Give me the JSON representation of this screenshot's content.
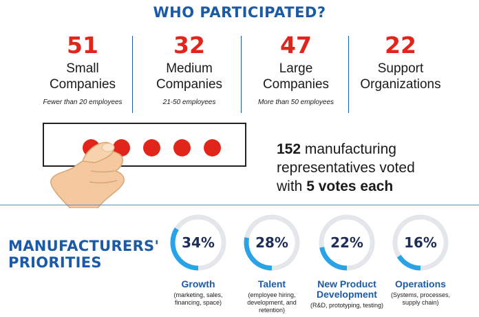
{
  "title": "WHO PARTICIPATED?",
  "stats": [
    {
      "number": "51",
      "line1": "Small",
      "line2": "Companies",
      "sub": "Fewer than 20 employees"
    },
    {
      "number": "32",
      "line1": "Medium",
      "line2": "Companies",
      "sub": "21-50 employees"
    },
    {
      "number": "47",
      "line1": "Large",
      "line2": "Companies",
      "sub": "More than 50 employees"
    },
    {
      "number": "22",
      "line1": "Support",
      "line2": "Organizations",
      "sub": ""
    }
  ],
  "votes": {
    "dots": 5,
    "number": "152",
    "text1": " manufacturing",
    "text2": "representatives voted",
    "text3": "with ",
    "bold2": "5 votes each"
  },
  "priorities_title": {
    "line1": "MANUFACTURERS'",
    "line2": "PRIORITIES"
  },
  "priorities": [
    {
      "percent": "34%",
      "value": 0.34,
      "name1": "Growth",
      "name2": "",
      "desc": [
        "(marketing, sales,",
        "financing, space)"
      ]
    },
    {
      "percent": "28%",
      "value": 0.28,
      "name1": "Talent",
      "name2": "",
      "desc": [
        "(employee hiring,",
        "development, and",
        "retention)"
      ]
    },
    {
      "percent": "22%",
      "value": 0.22,
      "name1": "New Product",
      "name2": "Development",
      "desc": [
        "(R&D, prototyping, testing)"
      ]
    },
    {
      "percent": "16%",
      "value": 0.16,
      "name1": "Operations",
      "name2": "",
      "desc": [
        "(Systems, processes,",
        "supply chain)"
      ]
    }
  ],
  "colors": {
    "accent_red": "#e1251b",
    "brand_blue": "#1a5aa6",
    "ring_blue": "#29a3e8",
    "ring_gray": "#e3e6ea",
    "navy": "#1c2d5a"
  }
}
